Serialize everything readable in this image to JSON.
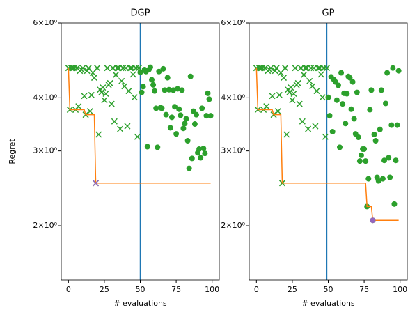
{
  "chart_data": [
    {
      "type": "scatter",
      "title": "DGP",
      "xlabel": "# evaluations",
      "ylabel": "Regret",
      "xlim": [
        -5,
        105
      ],
      "xticks": [
        0,
        25,
        50,
        75,
        100
      ],
      "ylim": [
        1.49,
        6
      ],
      "log_y": true,
      "yticks": [
        {
          "value": 2,
          "label": "2×10⁰"
        },
        {
          "value": 3,
          "label": "3×10⁰"
        },
        {
          "value": 4,
          "label": "4×10⁰"
        },
        {
          "value": 6,
          "label": "6×10⁰"
        }
      ],
      "vline": {
        "x": 50,
        "color": "#1f77b4"
      },
      "best_line_color": "#ff7f0e",
      "best_marker_color": "#9467bd",
      "series": [
        {
          "marker": "x",
          "color": "#2ca02c",
          "x": [
            0,
            1,
            2,
            3,
            4,
            5,
            6,
            7,
            8,
            9,
            10,
            11,
            12,
            13,
            14,
            15,
            16,
            17,
            18,
            19,
            20,
            21,
            22,
            23,
            24,
            25,
            26,
            27,
            28,
            29,
            30,
            31,
            32,
            33,
            34,
            35,
            36,
            37,
            38,
            39,
            40,
            41,
            42,
            43,
            44,
            45,
            46,
            47,
            48,
            49
          ],
          "values": [
            4.7,
            3.75,
            4.7,
            4.7,
            4.7,
            3.75,
            4.7,
            3.82,
            4.63,
            4.66,
            4.7,
            4.04,
            3.65,
            4.63,
            4.7,
            3.72,
            4.06,
            4.58,
            4.46,
            2.52,
            4.7,
            3.28,
            4.18,
            4.12,
            4.23,
            3.95,
            4.09,
            4.7,
            4.29,
            4.33,
            3.87,
            4.7,
            3.52,
            4.53,
            4.7,
            4.7,
            3.38,
            4.38,
            4.7,
            4.26,
            4.7,
            3.43,
            4.15,
            4.7,
            4.7,
            4.54,
            4.01,
            4.7,
            3.24,
            4.7
          ]
        },
        {
          "marker": "o",
          "color": "#2ca02c",
          "x": [
            50,
            51,
            52,
            53,
            54,
            55,
            56,
            57,
            58,
            59,
            60,
            61,
            62,
            63,
            64,
            65,
            66,
            67,
            68,
            69,
            70,
            71,
            72,
            73,
            74,
            75,
            76,
            77,
            78,
            79,
            80,
            81,
            82,
            83,
            84,
            85,
            86,
            87,
            88,
            89,
            90,
            91,
            92,
            93,
            94,
            95,
            96,
            97,
            98,
            99
          ],
          "values": [
            4.59,
            4.12,
            4.25,
            4.66,
            4.61,
            3.07,
            4.66,
            4.72,
            4.41,
            4.29,
            4.15,
            3.78,
            3.06,
            4.61,
            3.79,
            3.78,
            4.68,
            4.17,
            3.65,
            4.46,
            4.18,
            3.4,
            3.6,
            4.17,
            3.81,
            3.29,
            4.2,
            3.76,
            3.64,
            4.17,
            3.39,
            3.48,
            3.57,
            3.17,
            2.73,
            4.49,
            2.88,
            3.72,
            3.47,
            3.65,
            2.97,
            3.03,
            2.89,
            3.78,
            3.04,
            2.96,
            3.63,
            4.1,
            3.97,
            3.63
          ]
        }
      ]
    },
    {
      "type": "scatter",
      "title": "GP",
      "xlabel": "# evaluations",
      "xlim": [
        -5,
        105
      ],
      "xticks": [
        0,
        25,
        50,
        75,
        100
      ],
      "ylim": [
        1.49,
        6
      ],
      "log_y": true,
      "yticks": [
        {
          "value": 2,
          "label": "2×10⁰"
        },
        {
          "value": 3,
          "label": "3×10⁰"
        },
        {
          "value": 4,
          "label": "4×10⁰"
        },
        {
          "value": 6,
          "label": "6×10⁰"
        }
      ],
      "vline": {
        "x": 49,
        "color": "#1f77b4"
      },
      "best_line_color": "#ff7f0e",
      "best_marker_color": "#9467bd",
      "series": [
        {
          "marker": "x",
          "color": "#2ca02c",
          "x": [
            0,
            1,
            2,
            3,
            4,
            5,
            6,
            7,
            8,
            9,
            10,
            11,
            12,
            13,
            14,
            15,
            16,
            17,
            18,
            19,
            20,
            21,
            22,
            23,
            24,
            25,
            26,
            27,
            28,
            29,
            30,
            31,
            32,
            33,
            34,
            35,
            36,
            37,
            38,
            39,
            40,
            41,
            42,
            43,
            44,
            45,
            46,
            47,
            48,
            49
          ],
          "values": [
            4.7,
            3.75,
            4.7,
            4.7,
            4.7,
            3.75,
            4.7,
            3.82,
            4.63,
            4.66,
            4.7,
            4.04,
            3.65,
            4.63,
            4.7,
            3.72,
            4.06,
            4.58,
            2.52,
            4.46,
            4.7,
            3.28,
            4.18,
            4.12,
            4.23,
            3.95,
            4.09,
            4.7,
            4.29,
            4.33,
            3.87,
            4.7,
            3.52,
            4.53,
            4.7,
            4.7,
            3.38,
            4.38,
            4.7,
            4.26,
            4.7,
            3.43,
            4.15,
            4.7,
            4.7,
            4.54,
            4.01,
            4.7,
            3.24,
            4.7
          ]
        },
        {
          "marker": "o",
          "color": "#2ca02c",
          "x": [
            50,
            51,
            52,
            53,
            54,
            55,
            56,
            57,
            58,
            59,
            60,
            61,
            62,
            63,
            64,
            65,
            66,
            67,
            68,
            69,
            70,
            71,
            72,
            73,
            74,
            75,
            76,
            77,
            78,
            79,
            80,
            81,
            82,
            83,
            84,
            85,
            86,
            87,
            88,
            89,
            90,
            91,
            92,
            93,
            94,
            95,
            96,
            97,
            98,
            99
          ],
          "values": [
            4.01,
            3.63,
            4.48,
            3.33,
            4.41,
            4.36,
            3.95,
            4.28,
            3.06,
            4.58,
            3.87,
            4.1,
            3.48,
            4.09,
            4.49,
            4.46,
            3.76,
            4.36,
            3.57,
            3.29,
            4.12,
            3.23,
            2.84,
            2.93,
            3.03,
            3.03,
            2.84,
            2.22,
            2.58,
            3.75,
            4.17,
            2.06,
            3.28,
            3.17,
            2.6,
            2.55,
            3.37,
            4.17,
            2.58,
            2.85,
            3.88,
            4.58,
            2.89,
            2.6,
            3.45,
            4.7,
            2.25,
            2.85,
            3.45,
            4.63
          ]
        }
      ]
    }
  ]
}
